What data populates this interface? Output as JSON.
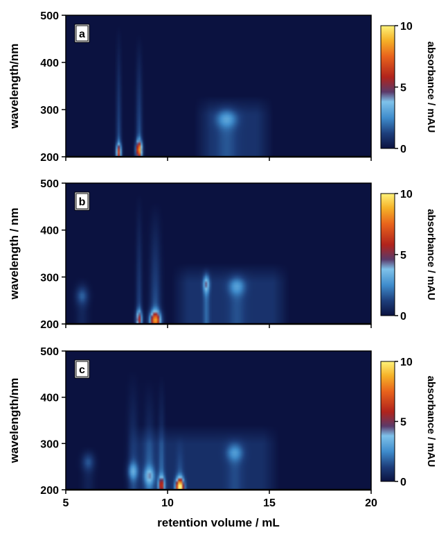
{
  "chart_data": [
    {
      "type": "heatmap",
      "panel_label": "a",
      "xlabel": "",
      "ylabel": "wavelength/nm",
      "xlim": [
        5,
        20
      ],
      "ylim": [
        200,
        500
      ],
      "x_ticks": [
        5,
        10,
        15,
        20
      ],
      "y_ticks": [
        200,
        300,
        400,
        500
      ],
      "x_tick_labels_shown": false,
      "colorbar": {
        "label": "absorbance / mAU",
        "range": [
          0,
          10
        ],
        "ticks": [
          0,
          5,
          10
        ]
      },
      "features": [
        {
          "x": 7.6,
          "y_peak": 210,
          "intensity": 5,
          "ridge_top": 480,
          "ridge_strength": 1.8,
          "width": 0.12
        },
        {
          "x": 8.6,
          "y_peak": 215,
          "intensity": 7,
          "ridge_top": 460,
          "ridge_strength": 2.0,
          "width": 0.14
        },
        {
          "x": 12.9,
          "y_peak": 280,
          "intensity": 1.5,
          "ridge_top": 320,
          "ridge_strength": 0.8,
          "width": 0.5
        }
      ],
      "diffuse": [
        {
          "x_from": 11.3,
          "x_to": 15.2,
          "y_from": 200,
          "y_to": 330,
          "level": 0.9
        }
      ]
    },
    {
      "type": "heatmap",
      "panel_label": "b",
      "xlabel": "",
      "ylabel": "wavelength / nm",
      "xlim": [
        5,
        20
      ],
      "ylim": [
        200,
        500
      ],
      "x_ticks": [
        5,
        10,
        15,
        20
      ],
      "y_ticks": [
        200,
        300,
        400,
        500
      ],
      "x_tick_labels_shown": false,
      "colorbar": {
        "label": "absorbance / mAU",
        "range": [
          0,
          10
        ],
        "ticks": [
          0,
          5,
          10
        ]
      },
      "features": [
        {
          "x": 5.8,
          "y_peak": 260,
          "intensity": 1.3,
          "ridge_top": 300,
          "ridge_strength": 0.6,
          "width": 0.3
        },
        {
          "x": 8.6,
          "y_peak": 210,
          "intensity": 4.5,
          "ridge_top": 480,
          "ridge_strength": 1.6,
          "width": 0.14
        },
        {
          "x": 9.4,
          "y_peak": 208,
          "intensity": 7,
          "ridge_top": 460,
          "ridge_strength": 2.0,
          "width": 0.25
        },
        {
          "x": 11.9,
          "y_peak": 285,
          "intensity": 2.5,
          "ridge_top": 320,
          "ridge_strength": 1.2,
          "width": 0.15
        },
        {
          "x": 13.4,
          "y_peak": 280,
          "intensity": 1.5,
          "ridge_top": 320,
          "ridge_strength": 0.7,
          "width": 0.4
        }
      ],
      "diffuse": [
        {
          "x_from": 10.2,
          "x_to": 16,
          "y_from": 200,
          "y_to": 330,
          "level": 0.9
        }
      ]
    },
    {
      "type": "heatmap",
      "panel_label": "c",
      "xlabel": "retention volume / mL",
      "ylabel": "wavelength/nm",
      "xlim": [
        5,
        20
      ],
      "ylim": [
        200,
        500
      ],
      "x_ticks": [
        5,
        10,
        15,
        20
      ],
      "y_ticks": [
        200,
        300,
        400,
        500
      ],
      "x_tick_labels_shown": true,
      "colorbar": {
        "label": "absorbance / mAU",
        "range": [
          0,
          10
        ],
        "ticks": [
          0,
          5,
          10
        ]
      },
      "features": [
        {
          "x": 6.1,
          "y_peak": 260,
          "intensity": 1.2,
          "ridge_top": 290,
          "ridge_strength": 0.5,
          "width": 0.3
        },
        {
          "x": 8.3,
          "y_peak": 240,
          "intensity": 2.0,
          "ridge_top": 460,
          "ridge_strength": 1.2,
          "width": 0.25
        },
        {
          "x": 9.1,
          "y_peak": 230,
          "intensity": 2.3,
          "ridge_top": 440,
          "ridge_strength": 1.3,
          "width": 0.25
        },
        {
          "x": 9.7,
          "y_peak": 210,
          "intensity": 4.5,
          "ridge_top": 450,
          "ridge_strength": 1.5,
          "width": 0.15
        },
        {
          "x": 10.6,
          "y_peak": 205,
          "intensity": 10,
          "ridge_top": 320,
          "ridge_strength": 1.2,
          "width": 0.18
        },
        {
          "x": 13.3,
          "y_peak": 280,
          "intensity": 1.5,
          "ridge_top": 320,
          "ridge_strength": 0.7,
          "width": 0.4
        }
      ],
      "diffuse": [
        {
          "x_from": 8.0,
          "x_to": 15.5,
          "y_from": 200,
          "y_to": 340,
          "level": 0.8
        }
      ]
    }
  ]
}
